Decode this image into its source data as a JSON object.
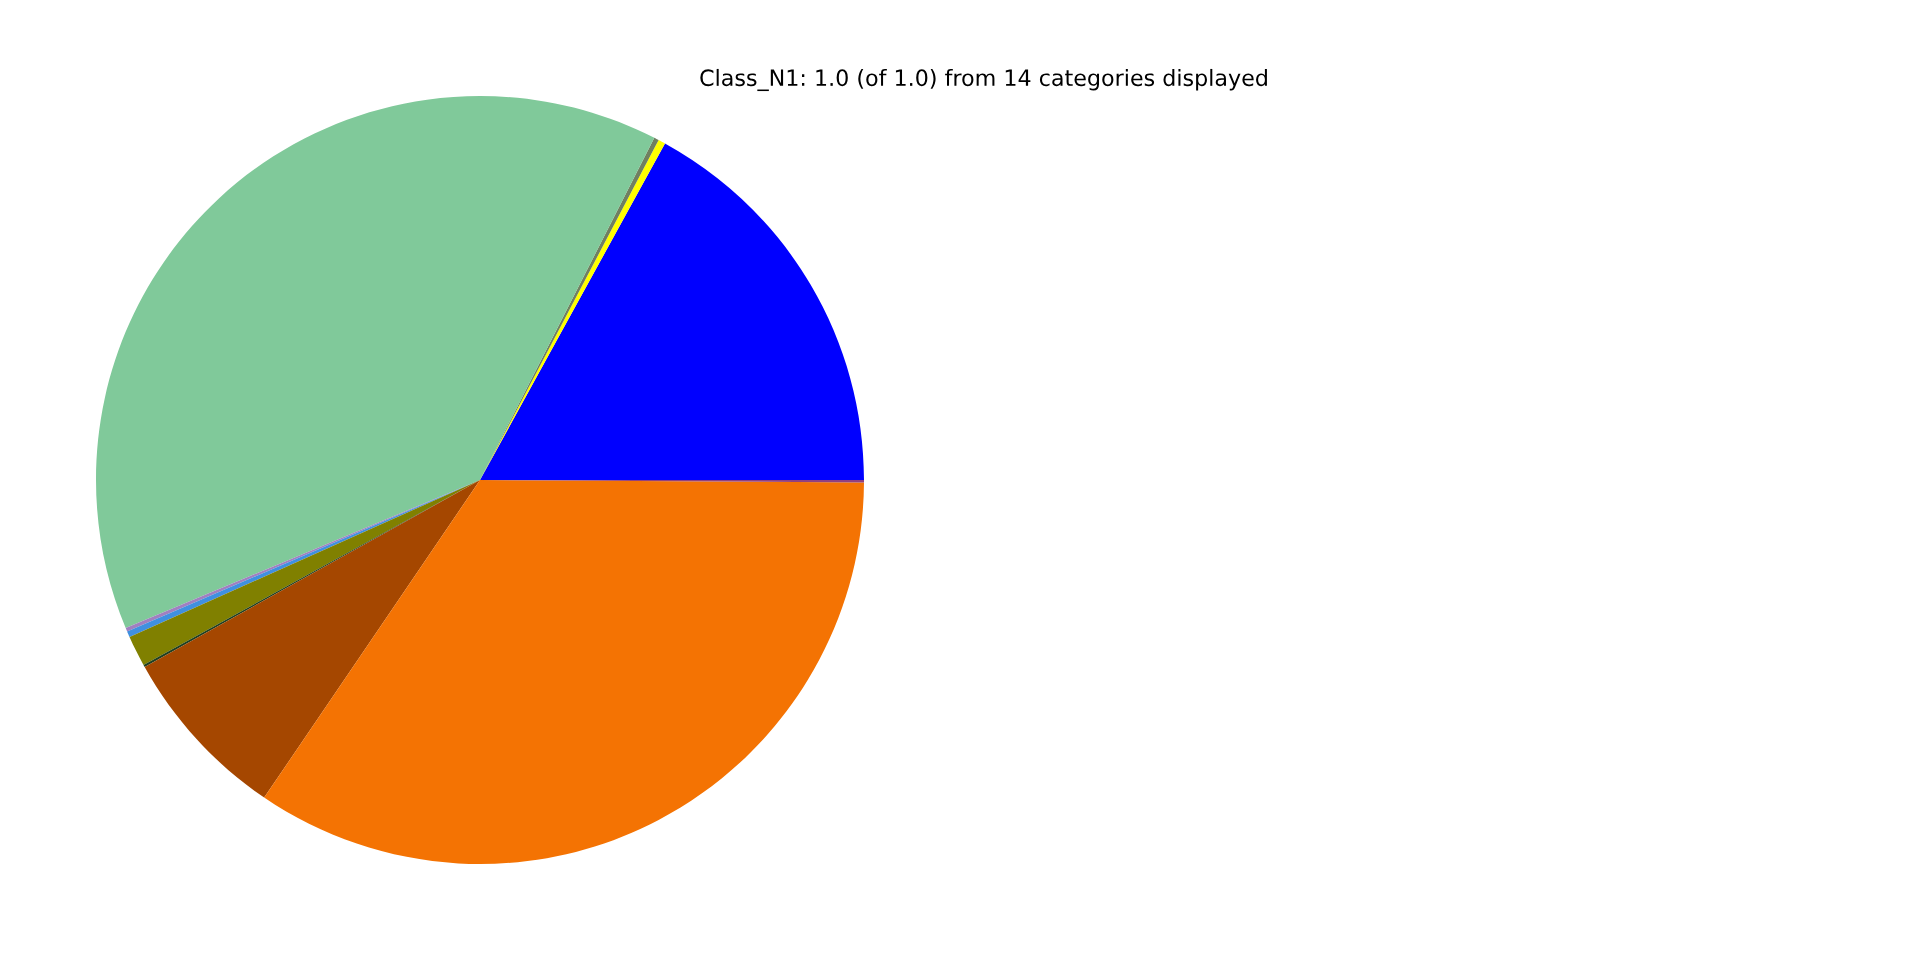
{
  "chart_data": {
    "type": "pie",
    "title": "Class_N1: 1.0 (of 1.0) from 14 categories displayed",
    "categories": [
      null,
      null,
      null,
      null,
      null,
      null,
      null,
      null,
      null,
      null,
      null
    ],
    "values": [
      17.0,
      0.3,
      0.2,
      38.8,
      0.15,
      0.25,
      1.3,
      0.1,
      7.4,
      34.4,
      0.1
    ],
    "colors": [
      "#0000ff",
      "#ffff00",
      "#708060",
      "#80c99a",
      "#a080c0",
      "#4090e0",
      "#808000",
      "#204020",
      "#a54700",
      "#f47303",
      "#904080"
    ]
  }
}
